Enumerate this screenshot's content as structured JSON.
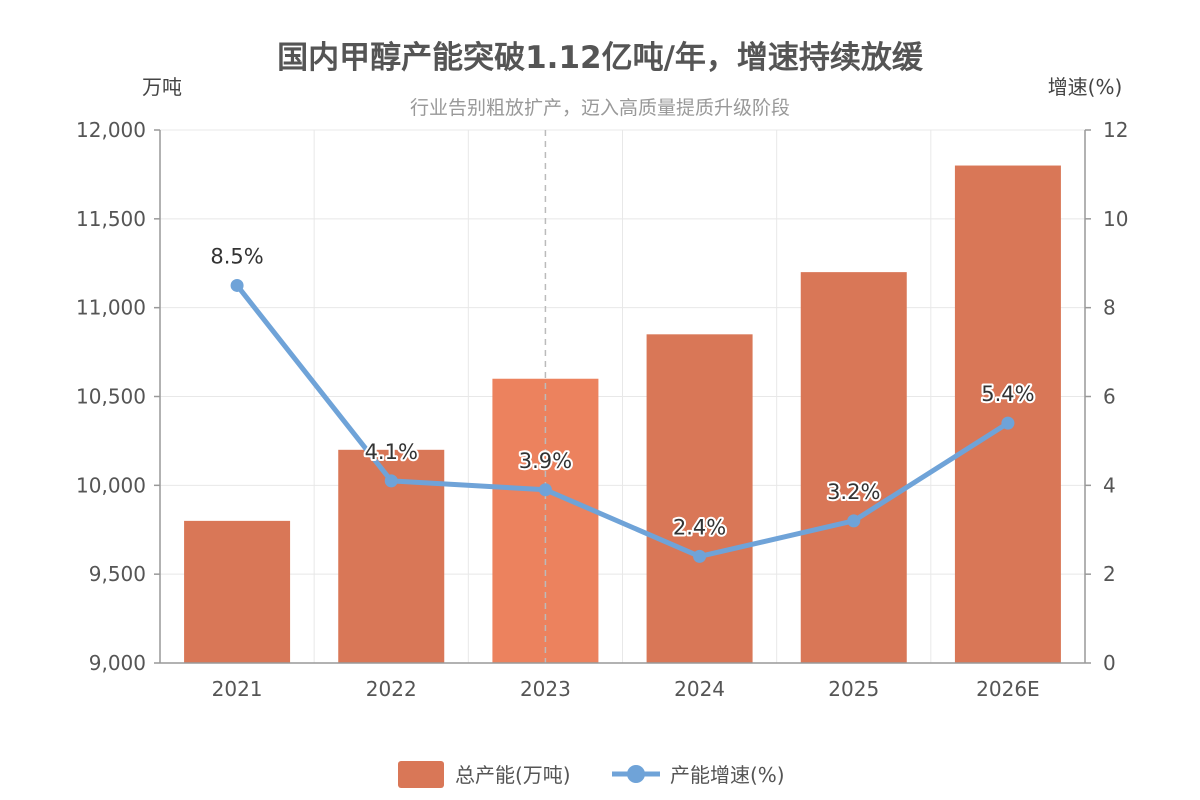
{
  "chart_data": {
    "type": "bar+line",
    "title": "国内甲醇产能突破1.12亿吨/年，增速持续放缓",
    "subtitle": "行业告别粗放扩产，迈入高质量提质升级阶段",
    "categories": [
      "2021",
      "2022",
      "2023",
      "2024",
      "2025",
      "2026E"
    ],
    "highlight_category": "2023",
    "y_left": {
      "label": "万吨",
      "min": 9000,
      "max": 12000,
      "ticks": [
        "9,000",
        "9,500",
        "10,000",
        "10,500",
        "11,000",
        "11,500",
        "12,000"
      ]
    },
    "y_right": {
      "label": "增速(%)",
      "min": 0,
      "max": 12,
      "ticks": [
        "0",
        "2",
        "4",
        "6",
        "8",
        "10",
        "12"
      ]
    },
    "series": [
      {
        "name": "总产能(万吨)",
        "type": "bar",
        "axis": "left",
        "values": [
          9800,
          10200,
          10600,
          10850,
          11200,
          11800
        ],
        "color": "#d97757",
        "highlight_color": "#ec825e"
      },
      {
        "name": "产能增速(%)",
        "type": "line",
        "axis": "right",
        "values": [
          8.5,
          4.1,
          3.9,
          2.4,
          3.2,
          5.4
        ],
        "labels": [
          "8.5%",
          "4.1%",
          "3.9%",
          "2.4%",
          "3.2%",
          "5.4%"
        ],
        "color": "#6fa3d8"
      }
    ],
    "grid": true,
    "legend_position": "bottom-center"
  }
}
